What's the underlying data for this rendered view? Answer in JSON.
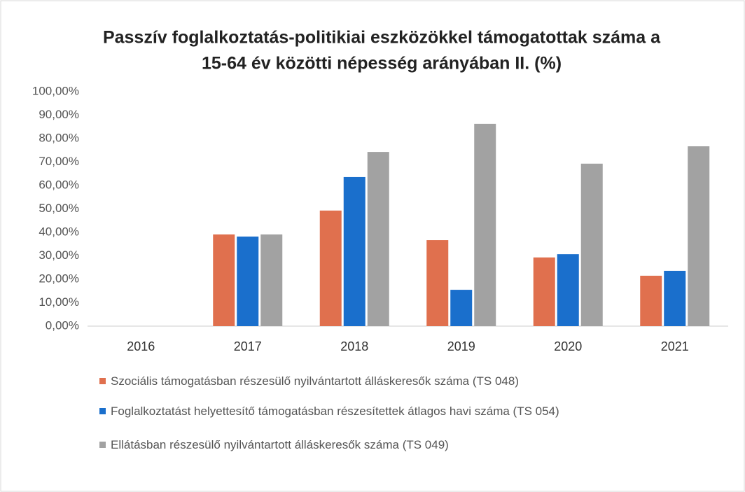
{
  "chart_data": {
    "type": "bar",
    "title": [
      "Passzív foglalkoztatás-politikiai eszközökkel támogatottak száma a",
      "15-64 év közötti népesség  arányában II. (%)"
    ],
    "categories": [
      "2016",
      "2017",
      "2018",
      "2019",
      "2020",
      "2021"
    ],
    "series": [
      {
        "name": "Szociális támogatásban részesülő nyilvántartott álláskeresők száma (TS 048)",
        "color": "#e0704e",
        "values": [
          null,
          39.1,
          49.3,
          36.7,
          29.3,
          21.5
        ]
      },
      {
        "name": "Foglalkoztatást helyettesítő támogatásban részesítettek átlagos havi száma (TS 054)",
        "color": "#1a6fcc",
        "values": [
          null,
          38.2,
          63.6,
          15.5,
          30.7,
          23.6
        ]
      },
      {
        "name": "Ellátásban részesülő nyilvántartott álláskeresők száma (TS 049)",
        "color": "#a2a2a2",
        "values": [
          null,
          39.1,
          74.3,
          86.3,
          69.3,
          76.7
        ]
      }
    ],
    "ylim": [
      0,
      100
    ],
    "yticks": [
      {
        "value": 0,
        "label": "0,00%"
      },
      {
        "value": 10,
        "label": "10,00%"
      },
      {
        "value": 20,
        "label": "20,00%"
      },
      {
        "value": 30,
        "label": "30,00%"
      },
      {
        "value": 40,
        "label": "40,00%"
      },
      {
        "value": 50,
        "label": "50,00%"
      },
      {
        "value": 60,
        "label": "60,00%"
      },
      {
        "value": 70,
        "label": "70,00%"
      },
      {
        "value": 80,
        "label": "80,00%"
      },
      {
        "value": 90,
        "label": "90,00%"
      },
      {
        "value": 100,
        "label": "100,00%"
      }
    ],
    "grid": false,
    "legend": "bottom"
  }
}
